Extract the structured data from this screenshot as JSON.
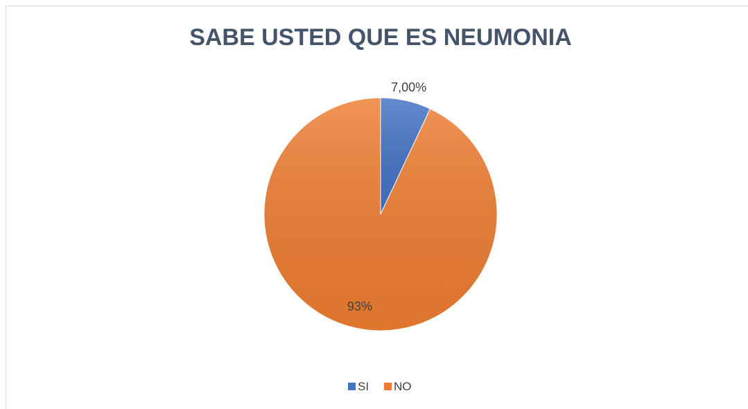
{
  "chart_data": {
    "type": "pie",
    "title": "SABE USTED QUE ES NEUMONIA",
    "categories": [
      "SI",
      "NO"
    ],
    "values": [
      7,
      93
    ],
    "value_labels": [
      "7,00%",
      "93%"
    ],
    "colors": [
      "#4472c4",
      "#ed7d31"
    ],
    "legend": "bottom"
  }
}
